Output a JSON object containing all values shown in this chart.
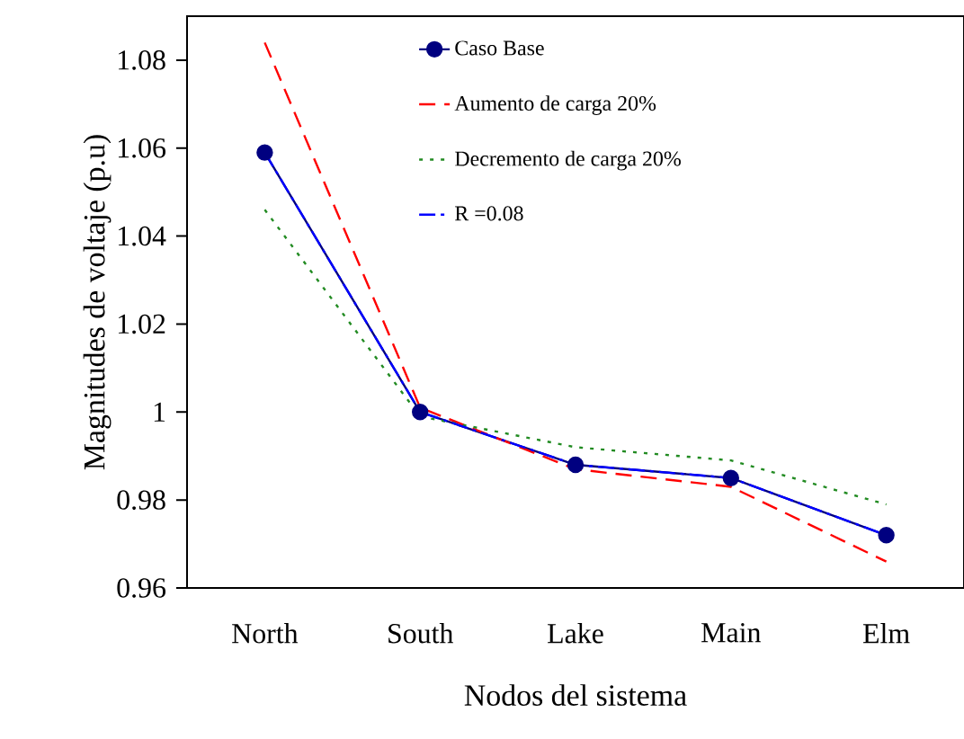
{
  "chart_data": {
    "type": "line",
    "xlabel": "Nodos del sistema",
    "ylabel": "Magnitudes de voltaje (p.u)",
    "categories": [
      "North",
      "South",
      "Lake",
      "Main",
      "Elm"
    ],
    "series": [
      {
        "name": "Caso Base",
        "color": "#000080",
        "marker": "circle",
        "line_style": "solid",
        "values": [
          1.059,
          1.0,
          0.988,
          0.985,
          0.972
        ]
      },
      {
        "name": "Aumento de carga 20%",
        "color": "#ff0000",
        "line_style": "dashed",
        "values": [
          1.084,
          1.001,
          0.987,
          0.983,
          0.966
        ]
      },
      {
        "name": "Decremento de carga 20%",
        "color": "#228b22",
        "line_style": "dotted",
        "values": [
          1.046,
          0.999,
          0.992,
          0.989,
          0.979
        ]
      },
      {
        "name": "R =0.08",
        "color": "#0000ff",
        "line_style": "dashdot",
        "values": [
          1.059,
          1.0,
          0.988,
          0.985,
          0.972
        ]
      }
    ],
    "ylim": [
      0.96,
      1.09
    ],
    "yticks": [
      0.96,
      0.98,
      {
        "value": 1.0,
        "label": "1"
      },
      1.02,
      1.04,
      1.06,
      1.08
    ],
    "grid": false,
    "legend": "top right"
  }
}
